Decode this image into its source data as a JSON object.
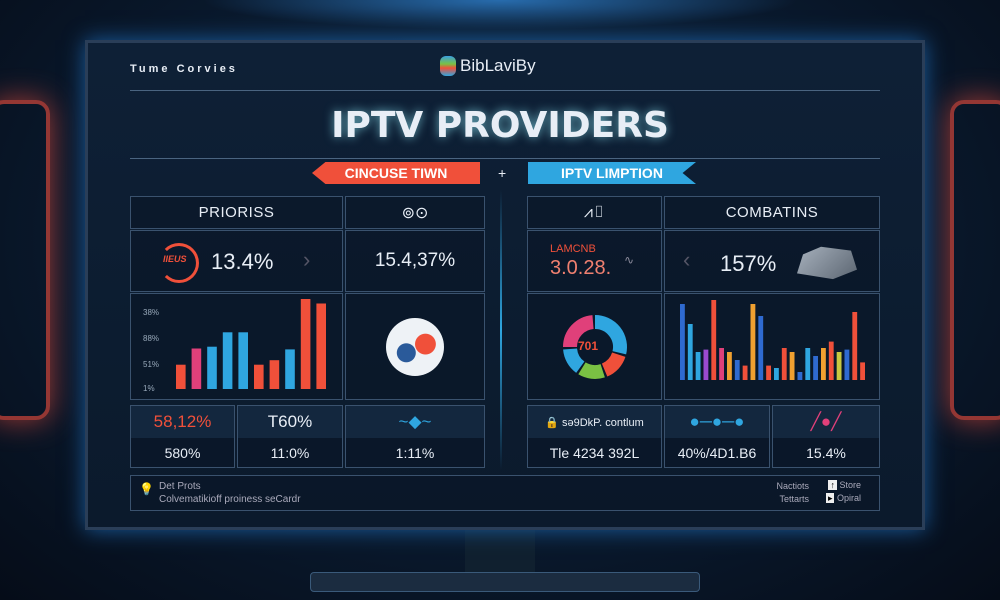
{
  "top_nav": {
    "left_text": "Tume  Corvies",
    "logo_text": "BibLaviBy"
  },
  "title": "IPTV PROVIDERS",
  "ribbons": {
    "left": "CINCUSE TIWN",
    "plus": "+",
    "right": "IPTV LIMPTION"
  },
  "colors": {
    "accent_red": "#f0503a",
    "accent_blue": "#2fa6e0",
    "pink": "#e0407a",
    "bg": "#0b1a2c"
  },
  "left": {
    "header": {
      "label": "PRIORISS",
      "icon": "satellite-icon"
    },
    "kpi1": {
      "gauge_label": "IIEUS",
      "value": "13.4%"
    },
    "kpi2": {
      "value": "15.4,37%"
    },
    "bar_chart": {
      "type": "bar",
      "y_ticks": [
        "38%",
        "88%",
        "51%",
        "1%"
      ],
      "values": [
        27,
        45,
        47,
        63,
        63,
        27,
        32,
        44,
        100,
        95
      ],
      "colors": [
        "#f0503a",
        "#e0407a",
        "#2fa6e0",
        "#2fa6e0",
        "#2fa6e0",
        "#f0503a",
        "#f0503a",
        "#2fa6e0",
        "#f0503a",
        "#f0503a"
      ]
    },
    "globe": "globe-icon",
    "bottom": [
      {
        "top": "58,12%",
        "bottom": "580%"
      },
      {
        "top": "T60%",
        "bottom": "11:0%"
      },
      {
        "top": "",
        "bottom": "1:11%"
      }
    ]
  },
  "right": {
    "header": {
      "icon": "signal-chart-icon",
      "label": "COMBATINS"
    },
    "kpi1": {
      "label": "LAMCNB",
      "value": "3.0.28."
    },
    "kpi2": {
      "value": "157%"
    },
    "donut": {
      "center": "701",
      "segments": [
        {
          "value": 30,
          "color": "#2fa6e0"
        },
        {
          "value": 15,
          "color": "#f0503a"
        },
        {
          "value": 15,
          "color": "#7ac143"
        },
        {
          "value": 15,
          "color": "#2fa6e0"
        },
        {
          "value": 25,
          "color": "#e0407a"
        }
      ]
    },
    "bar_chart": {
      "type": "bar",
      "values": [
        95,
        70,
        35,
        38,
        100,
        40,
        35,
        25,
        18,
        95,
        80,
        18,
        15,
        40,
        35,
        10,
        40,
        30,
        40,
        48,
        35,
        38,
        85,
        22
      ],
      "colors": [
        "#2f6ad0",
        "#2fa6e0",
        "#2fa6e0",
        "#9a4ad0",
        "#f0503a",
        "#e0407a",
        "#f0a030",
        "#2f6ad0",
        "#f0503a",
        "#f0a030",
        "#2f6ad0",
        "#f0503a",
        "#2fa6e0",
        "#f0503a",
        "#f0a030",
        "#2f6ad0",
        "#2fa6e0",
        "#2f6ad0",
        "#f0a030",
        "#f0503a",
        "#c8c840",
        "#2f6ad0",
        "#f0503a",
        "#f0503a"
      ]
    },
    "bottom": [
      {
        "top": "sə9DkP. contlum",
        "bottom": "Tle 4234 392L"
      },
      {
        "top": "",
        "bottom": "40%/4D1.B6"
      },
      {
        "top": "",
        "bottom": "15.4%"
      }
    ]
  },
  "footer": {
    "left_title": "Det Prots",
    "left_text": "Colvematikioff proiness seCardr",
    "right_row1": "Nactiots",
    "right_btn1": "Store",
    "right_row2": "Tettarts",
    "right_btn2": "Opiral"
  }
}
